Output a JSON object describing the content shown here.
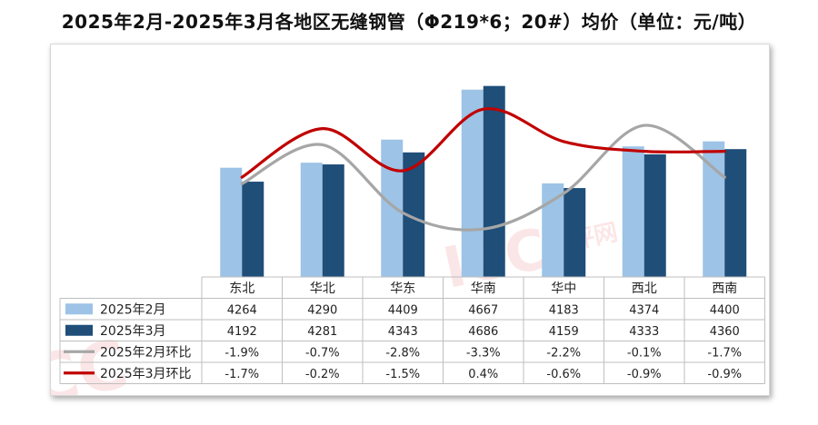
{
  "title": "2025年2月-2025年3月各地区无缝钢管（Φ219*6；20#）均价（单位：元/吨）",
  "chart_data": {
    "type": "bar",
    "categories": [
      "东北",
      "华北",
      "华东",
      "华南",
      "华中",
      "西北",
      "西南"
    ],
    "series": [
      {
        "name": "2025年2月",
        "kind": "bar",
        "color": "#9dc3e6",
        "values": [
          4264,
          4290,
          4409,
          4667,
          4183,
          4374,
          4400
        ]
      },
      {
        "name": "2025年3月",
        "kind": "bar",
        "color": "#1f4e79",
        "values": [
          4192,
          4281,
          4343,
          4686,
          4159,
          4333,
          4360
        ]
      },
      {
        "name": "2025年2月环比",
        "kind": "line",
        "color": "#a6a6a6",
        "values": [
          -1.9,
          -0.7,
          -2.8,
          -3.3,
          -2.2,
          -0.1,
          -1.7
        ],
        "labels": [
          "-1.9%",
          "-0.7%",
          "-2.8%",
          "-3.3%",
          "-2.2%",
          "-0.1%",
          "-1.7%"
        ]
      },
      {
        "name": "2025年3月环比",
        "kind": "line",
        "color": "#c00000",
        "values": [
          -1.7,
          -0.2,
          -1.5,
          0.4,
          -0.6,
          -0.9,
          -0.9
        ],
        "labels": [
          "-1.7%",
          "-0.2%",
          "-1.5%",
          "0.4%",
          "-0.6%",
          "-0.9%",
          "-0.9%"
        ]
      }
    ],
    "bar_axis_range": [
      3700,
      4750
    ],
    "line_axis_range": [
      -4.5,
      1.5
    ],
    "grid": false,
    "legend": "data-table"
  },
  "watermark": "ICC 慧评网"
}
